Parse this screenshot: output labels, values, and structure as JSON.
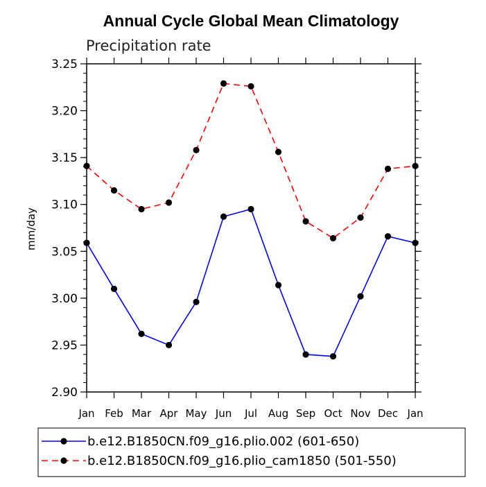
{
  "chart_data": {
    "type": "line",
    "title": "Annual Cycle Global Mean Climatology",
    "subtitle": "Precipitation rate",
    "xlabel": "",
    "ylabel": "mm/day",
    "ylim": [
      2.9,
      3.25
    ],
    "yticks": [
      "2.90",
      "2.95",
      "3.00",
      "3.05",
      "3.10",
      "3.15",
      "3.20",
      "3.25"
    ],
    "categories": [
      "Jan",
      "Feb",
      "Mar",
      "Apr",
      "May",
      "Jun",
      "Jul",
      "Aug",
      "Sep",
      "Oct",
      "Nov",
      "Dec",
      "Jan"
    ],
    "series": [
      {
        "name": "b.e12.B1850CN.f09_g16.plio.002 (601-650)",
        "color": "#0000ff",
        "dash": "solid",
        "values": [
          3.059,
          3.01,
          2.962,
          2.95,
          2.996,
          3.087,
          3.095,
          3.014,
          2.94,
          2.938,
          3.002,
          3.066,
          3.059
        ]
      },
      {
        "name": "b.e12.B1850CN.f09_g16.plio_cam1850 (501-550)",
        "color": "#ff0000",
        "dash": "dashed",
        "values": [
          3.141,
          3.115,
          3.095,
          3.102,
          3.158,
          3.229,
          3.226,
          3.156,
          3.082,
          3.064,
          3.086,
          3.138,
          3.141
        ]
      }
    ],
    "legend_position": "bottom"
  }
}
